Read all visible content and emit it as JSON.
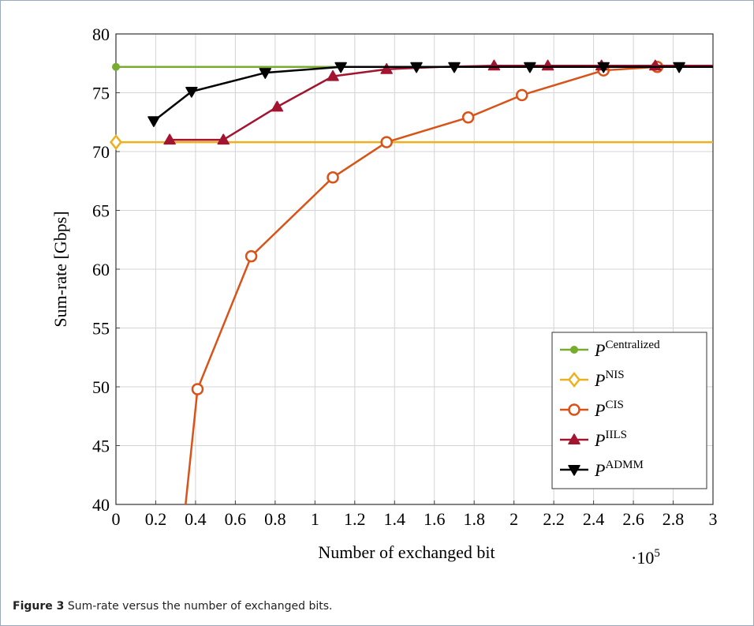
{
  "caption": {
    "label": "Figure 3",
    "text": "Sum-rate versus the number of exchanged bits."
  },
  "chart_data": {
    "type": "line",
    "title": "",
    "xlabel": "Number of exchanged bit",
    "ylabel": "Sum-rate [Gbps]",
    "x_multiplier_label": "·10",
    "x_multiplier_exp": "5",
    "xlim": [
      0,
      3
    ],
    "ylim": [
      40,
      80
    ],
    "xticks": [
      "0",
      "0.2",
      "0.4",
      "0.6",
      "0.8",
      "1",
      "1.2",
      "1.4",
      "1.6",
      "1.8",
      "2",
      "2.2",
      "2.4",
      "2.6",
      "2.8",
      "3"
    ],
    "yticks": [
      "40",
      "45",
      "50",
      "55",
      "60",
      "65",
      "70",
      "75",
      "80"
    ],
    "grid": true,
    "legend_position": "bottom-right",
    "series": [
      {
        "name": "P",
        "sup": "Centralized",
        "color": "#77ac30",
        "marker": "dot",
        "x": [
          0,
          3
        ],
        "y": [
          77.2,
          77.2
        ],
        "marker_x": [
          0
        ]
      },
      {
        "name": "P",
        "sup": "NIS",
        "color": "#edb120",
        "marker": "diamond",
        "x": [
          0,
          3
        ],
        "y": [
          70.8,
          70.8
        ],
        "marker_x": [
          0
        ]
      },
      {
        "name": "P",
        "sup": "CIS",
        "color": "#d95319",
        "marker": "circle",
        "x": [
          0.35,
          0.41,
          0.68,
          1.09,
          1.36,
          1.77,
          2.04,
          2.45,
          2.72,
          3.0
        ],
        "y": [
          40.0,
          49.8,
          61.1,
          67.8,
          70.8,
          72.9,
          74.8,
          76.9,
          77.2,
          77.2
        ],
        "marker_x": [
          0.41,
          0.68,
          1.09,
          1.36,
          1.77,
          2.04,
          2.45,
          2.72
        ]
      },
      {
        "name": "P",
        "sup": "IILS",
        "color": "#a2142f",
        "marker": "triangle-up",
        "x": [
          0.27,
          0.54,
          0.81,
          1.09,
          1.36,
          1.63,
          1.9,
          2.17,
          2.44,
          2.71,
          3.0
        ],
        "y": [
          71.0,
          71.0,
          73.8,
          76.4,
          77.0,
          77.2,
          77.3,
          77.3,
          77.3,
          77.3,
          77.3
        ],
        "marker_x": [
          0.27,
          0.54,
          0.81,
          1.09,
          1.36,
          1.9,
          2.17,
          2.44,
          2.71
        ]
      },
      {
        "name": "P",
        "sup": "ADMM",
        "color": "#000000",
        "marker": "triangle-down",
        "x": [
          0.19,
          0.38,
          0.75,
          1.13,
          1.51,
          1.7,
          2.08,
          2.45,
          2.83,
          3.0
        ],
        "y": [
          72.6,
          75.1,
          76.7,
          77.2,
          77.2,
          77.2,
          77.2,
          77.2,
          77.2,
          77.2
        ],
        "marker_x": [
          0.19,
          0.38,
          0.75,
          1.13,
          1.51,
          1.7,
          2.08,
          2.45,
          2.83
        ]
      }
    ]
  }
}
